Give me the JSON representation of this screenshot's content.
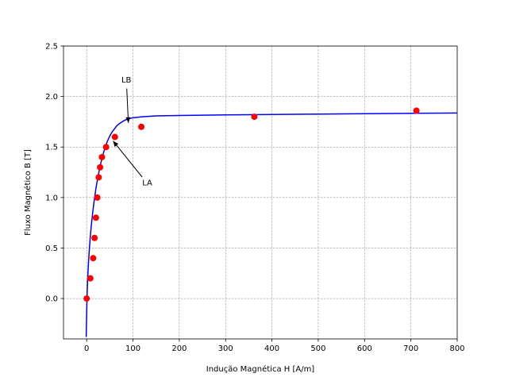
{
  "chart_data": {
    "type": "scatter",
    "title": "",
    "xlabel": "Indução Magnética H [A/m]",
    "ylabel": "Fluxo Magnético B [T]",
    "xlim": [
      -50,
      800
    ],
    "ylim": [
      -0.4,
      2.5
    ],
    "x_ticks": [
      0,
      100,
      200,
      300,
      400,
      500,
      600,
      700,
      800
    ],
    "y_ticks": [
      0.0,
      0.5,
      1.0,
      1.5,
      2.0,
      2.5
    ],
    "y_tick_labels": [
      "0.0",
      "0.5",
      "1.0",
      "1.5",
      "2.0",
      "2.5"
    ],
    "grid": true,
    "series": [
      {
        "kind": "scatter",
        "color": "#ff0000",
        "points": [
          [
            0,
            0.0
          ],
          [
            8,
            0.2
          ],
          [
            14,
            0.4
          ],
          [
            17,
            0.6
          ],
          [
            20,
            0.8
          ],
          [
            23,
            1.0
          ],
          [
            26,
            1.2
          ],
          [
            29,
            1.3
          ],
          [
            33,
            1.4
          ],
          [
            42,
            1.5
          ],
          [
            61,
            1.6
          ],
          [
            118,
            1.7
          ],
          [
            362,
            1.8
          ],
          [
            712,
            1.86
          ]
        ]
      },
      {
        "kind": "line",
        "color": "#0000ff",
        "curve": [
          [
            -1,
            -0.38
          ],
          [
            0,
            -0.15
          ],
          [
            1,
            0.05
          ],
          [
            2,
            0.17
          ],
          [
            3,
            0.27
          ],
          [
            4,
            0.36
          ],
          [
            6,
            0.5
          ],
          [
            8,
            0.62
          ],
          [
            10,
            0.72
          ],
          [
            13,
            0.85
          ],
          [
            16,
            0.96
          ],
          [
            20,
            1.09
          ],
          [
            25,
            1.22
          ],
          [
            30,
            1.33
          ],
          [
            35,
            1.42
          ],
          [
            40,
            1.5
          ],
          [
            45,
            1.56
          ],
          [
            50,
            1.61
          ],
          [
            55,
            1.65
          ],
          [
            60,
            1.68
          ],
          [
            65,
            1.71
          ],
          [
            70,
            1.73
          ],
          [
            80,
            1.76
          ],
          [
            90,
            1.78
          ],
          [
            100,
            1.79
          ],
          [
            120,
            1.8
          ],
          [
            150,
            1.808
          ],
          [
            200,
            1.812
          ],
          [
            300,
            1.818
          ],
          [
            400,
            1.822
          ],
          [
            500,
            1.826
          ],
          [
            600,
            1.83
          ],
          [
            700,
            1.834
          ],
          [
            800,
            1.837
          ]
        ]
      }
    ],
    "annotations": [
      {
        "text": "LB",
        "text_at": [
          75,
          2.14
        ],
        "arrow_to": [
          90,
          1.74
        ]
      },
      {
        "text": "LA",
        "text_at": [
          120,
          1.12
        ],
        "arrow_to": [
          57,
          1.56
        ]
      }
    ]
  }
}
